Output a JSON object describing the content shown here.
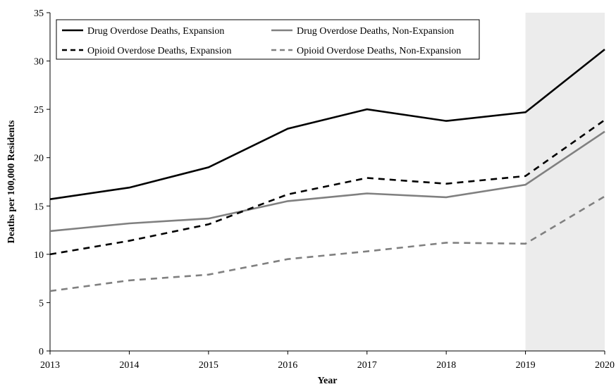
{
  "chart_data": {
    "type": "line",
    "x": [
      2013,
      2014,
      2015,
      2016,
      2017,
      2018,
      2019,
      2020
    ],
    "xlabel": "Year",
    "ylabel": "Deaths per 100,000 Residents",
    "ylim": [
      0,
      35
    ],
    "yticks": [
      0,
      5,
      10,
      15,
      20,
      25,
      30,
      35
    ],
    "grid": false,
    "legend_position": "top-left",
    "shaded_region": {
      "x_start": 2019,
      "x_end": 2020,
      "color": "#ececec"
    },
    "series": [
      {
        "name": "Drug Overdose Deaths, Expansion",
        "color": "#000000",
        "dash": "solid",
        "values": [
          15.7,
          16.9,
          19.0,
          23.0,
          25.0,
          23.8,
          24.7,
          31.2
        ]
      },
      {
        "name": "Drug Overdose Deaths, Non-Expansion",
        "color": "#808080",
        "dash": "solid",
        "values": [
          12.4,
          13.2,
          13.7,
          15.5,
          16.3,
          15.9,
          17.2,
          22.7
        ]
      },
      {
        "name": "Opioid Overdose Deaths, Expansion",
        "color": "#000000",
        "dash": "dashed",
        "values": [
          10.0,
          11.4,
          13.1,
          16.2,
          17.9,
          17.3,
          18.1,
          23.9
        ]
      },
      {
        "name": "Opioid Overdose Deaths, Non-Expansion",
        "color": "#808080",
        "dash": "dashed",
        "values": [
          6.2,
          7.3,
          7.9,
          9.5,
          10.3,
          11.2,
          11.1,
          16.0
        ]
      }
    ]
  }
}
